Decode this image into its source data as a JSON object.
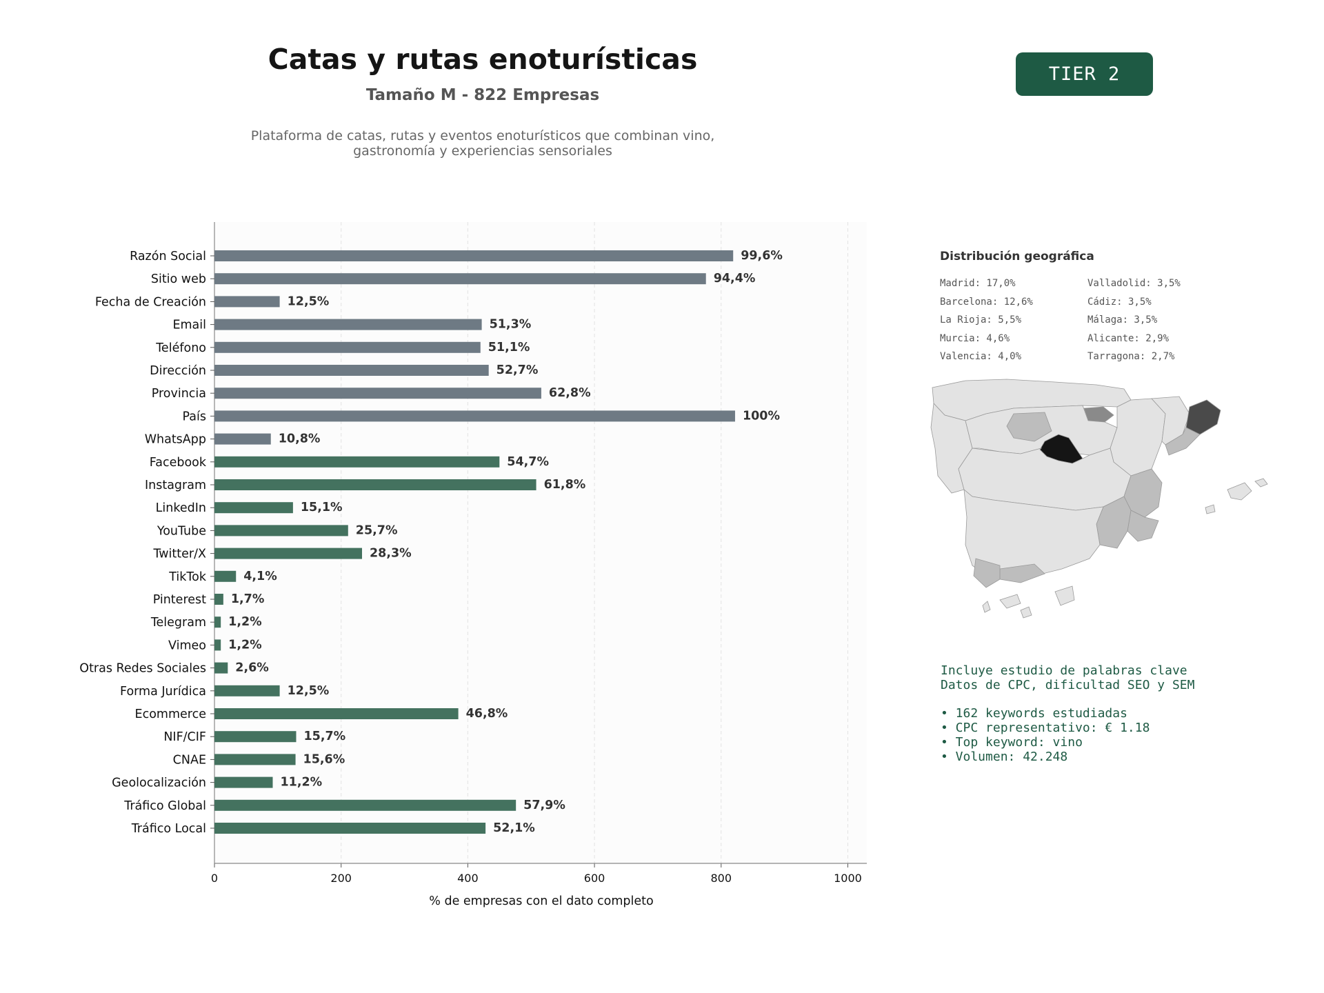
{
  "header": {
    "title": "Catas y rutas enoturísticas",
    "subtitle": "Tamaño M - 822 Empresas",
    "description_line1": "Plataforma de catas, rutas y eventos enoturísticos que combinan vino,",
    "description_line2": "gastronomía y experiencias sensoriales",
    "tier_label": "TIER 2"
  },
  "chart_data": {
    "type": "bar",
    "orientation": "horizontal",
    "xlabel": "% de empresas con el dato completo",
    "xlim": [
      0,
      1030
    ],
    "xticks": [
      0,
      200,
      400,
      600,
      800,
      1000
    ],
    "grid": "vertical dashed",
    "colors": {
      "contact": "#6e7a84",
      "digital": "#44725f"
    },
    "categories": [
      "Razón Social",
      "Sitio web",
      "Fecha de Creación",
      "Email",
      "Teléfono",
      "Dirección",
      "Provincia",
      "País",
      "WhatsApp",
      "Facebook",
      "Instagram",
      "LinkedIn",
      "YouTube",
      "Twitter/X",
      "TikTok",
      "Pinterest",
      "Telegram",
      "Vimeo",
      "Otras Redes Sociales",
      "Forma Jurídica",
      "Ecommerce",
      "NIF/CIF",
      "CNAE",
      "Geolocalización",
      "Tráfico Global",
      "Tráfico Local"
    ],
    "values": [
      819,
      776,
      103,
      422,
      420,
      433,
      516,
      822,
      89,
      450,
      508,
      124,
      211,
      233,
      34,
      14,
      10,
      10,
      21,
      103,
      385,
      129,
      128,
      92,
      476,
      428
    ],
    "labels": [
      "99,6%",
      "94,4%",
      "12,5%",
      "51,3%",
      "51,1%",
      "52,7%",
      "62,8%",
      "100%",
      "10,8%",
      "54,7%",
      "61,8%",
      "15,1%",
      "25,7%",
      "28,3%",
      "4,1%",
      "1,7%",
      "1,2%",
      "1,2%",
      "2,6%",
      "12,5%",
      "46,8%",
      "15,7%",
      "15,6%",
      "11,2%",
      "57,9%",
      "52,1%"
    ],
    "groups": [
      "contact",
      "contact",
      "contact",
      "contact",
      "contact",
      "contact",
      "contact",
      "contact",
      "contact",
      "digital",
      "digital",
      "digital",
      "digital",
      "digital",
      "digital",
      "digital",
      "digital",
      "digital",
      "digital",
      "digital",
      "digital",
      "digital",
      "digital",
      "digital",
      "digital",
      "digital"
    ]
  },
  "geo": {
    "title": "Distribución geográfica",
    "items": [
      "Madrid: 17,0%",
      "Valladolid: 3,5%",
      "Barcelona: 12,6%",
      "Cádiz: 3,5%",
      "La Rioja: 5,5%",
      "Málaga: 3,5%",
      "Murcia: 4,6%",
      "Alicante: 2,9%",
      "Valencia: 4,0%",
      "Tarragona: 2,7%"
    ],
    "map_colors": {
      "low": "#e3e3e3",
      "mid": "#bdbdbd",
      "high": "#8a8a8a",
      "top": "#151515",
      "second": "#4a4a4a"
    }
  },
  "keywords": {
    "line1": "Incluye estudio de palabras clave",
    "line2": "Datos de CPC, dificultad SEO y SEM",
    "bullets": [
      "• 162 keywords estudiadas",
      "• CPC representativo: € 1.18",
      "• Top keyword: vino",
      "• Volumen: 42.248"
    ]
  }
}
